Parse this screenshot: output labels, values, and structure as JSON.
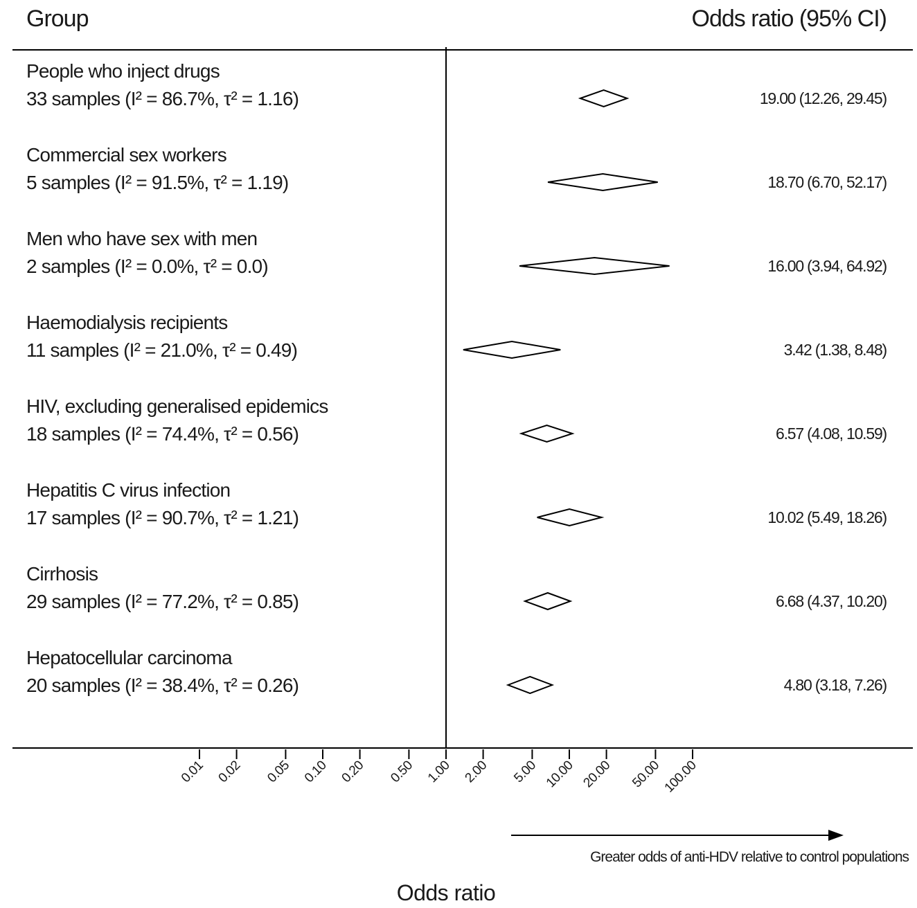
{
  "chart_data": {
    "type": "forest",
    "header_left": "Group",
    "header_right": "Odds ratio (95% CI)",
    "xlabel": "Odds ratio",
    "x_scale": "log",
    "xlim": [
      0.01,
      100
    ],
    "x_ticks": [
      0.01,
      0.02,
      0.05,
      0.1,
      0.2,
      0.5,
      1,
      2,
      5,
      10,
      20,
      50,
      100
    ],
    "x_tick_labels": [
      "0.01",
      "0.02",
      "0.05",
      "0.10",
      "0.20",
      "0.50",
      "1.00",
      "2.00",
      "5.00",
      "10.00",
      "20.00",
      "50.00",
      "100.00"
    ],
    "reference_line": 1,
    "arrow_note": "Greater odds of anti-HDV relative to control populations",
    "rows": [
      {
        "group": "People who inject drugs",
        "detail": "33 samples  (I² = 86.7%, τ² = 1.16)",
        "or": 19.0,
        "lo": 12.26,
        "hi": 29.45,
        "label": "19.00 (12.26, 29.45)"
      },
      {
        "group": "Commercial sex workers",
        "detail": "5 samples  (I² = 91.5%, τ² = 1.19)",
        "or": 18.7,
        "lo": 6.7,
        "hi": 52.17,
        "label": "18.70 (6.70, 52.17)"
      },
      {
        "group": "Men who have sex with men",
        "detail": "2 samples  (I² = 0.0%, τ² = 0.0)",
        "or": 16.0,
        "lo": 3.94,
        "hi": 64.92,
        "label": "16.00 (3.94, 64.92)"
      },
      {
        "group": "Haemodialysis recipients",
        "detail": "11 samples  (I² = 21.0%, τ² = 0.49)",
        "or": 3.42,
        "lo": 1.38,
        "hi": 8.48,
        "label": "3.42 (1.38, 8.48)"
      },
      {
        "group": "HIV, excluding generalised epidemics",
        "detail": "18 samples  (I² = 74.4%, τ² = 0.56)",
        "or": 6.57,
        "lo": 4.08,
        "hi": 10.59,
        "label": "6.57 (4.08, 10.59)"
      },
      {
        "group": "Hepatitis C virus infection",
        "detail": "17 samples (I² = 90.7%, τ² = 1.21)",
        "or": 10.02,
        "lo": 5.49,
        "hi": 18.26,
        "label": "10.02 (5.49, 18.26)"
      },
      {
        "group": "Cirrhosis",
        "detail": "29 samples  (I² = 77.2%, τ² = 0.85)",
        "or": 6.68,
        "lo": 4.37,
        "hi": 10.2,
        "label": "6.68 (4.37, 10.20)"
      },
      {
        "group": "Hepatocellular carcinoma",
        "detail": "20 samples  (I² = 38.4%, τ² = 0.26)",
        "or": 4.8,
        "lo": 3.18,
        "hi": 7.26,
        "label": "4.80 (3.18, 7.26)"
      }
    ]
  }
}
